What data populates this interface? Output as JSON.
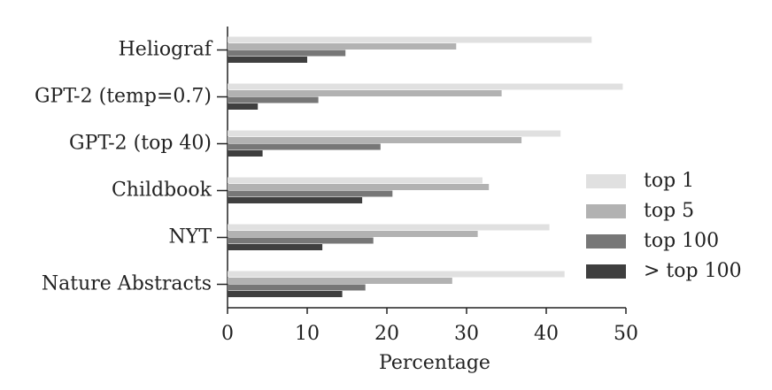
{
  "chart_data": {
    "type": "barh",
    "categories": [
      "Heliograf",
      "GPT-2 (temp=0.7)",
      "GPT-2 (top 40)",
      "Childbook",
      "NYT",
      "Nature Abstracts"
    ],
    "series": [
      {
        "name": "top 1",
        "color": "#e0e0e0",
        "values": [
          45.7,
          49.6,
          41.8,
          32.0,
          40.4,
          42.3
        ]
      },
      {
        "name": "top 5",
        "color": "#b2b2b2",
        "values": [
          28.7,
          34.4,
          36.9,
          32.8,
          31.4,
          28.2
        ]
      },
      {
        "name": "top 100",
        "color": "#777777",
        "values": [
          14.8,
          11.4,
          19.2,
          20.7,
          18.3,
          17.3
        ]
      },
      {
        "name": "> top 100",
        "color": "#3f3f3f",
        "values": [
          10.0,
          3.8,
          4.4,
          16.9,
          11.9,
          14.4
        ]
      }
    ],
    "xlabel": "Percentage",
    "xlim": [
      0,
      50
    ],
    "xticks": [
      0,
      10,
      20,
      30,
      40,
      50
    ],
    "legend": "right"
  }
}
